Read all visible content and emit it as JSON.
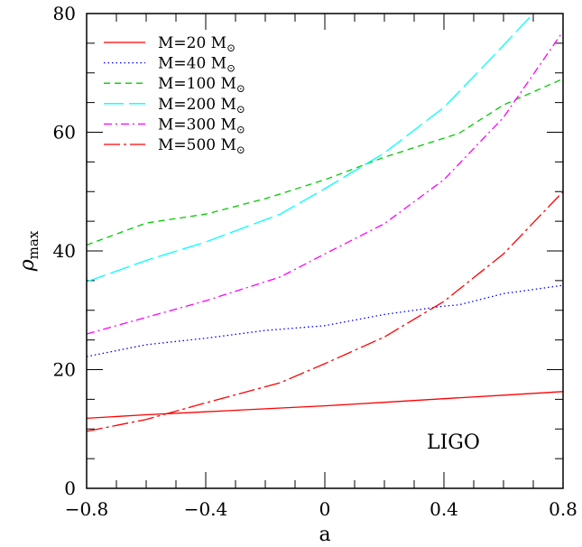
{
  "chart_data": {
    "type": "line",
    "xlabel": "a",
    "ylabel": "ρ",
    "ylabel_sub": "max",
    "xlim": [
      -0.8,
      0.8
    ],
    "ylim": [
      0,
      80
    ],
    "xticks": [
      -0.8,
      -0.4,
      0,
      0.4,
      0.8
    ],
    "xtick_labels": [
      "−0.8",
      "−0.4",
      "0",
      "0.4",
      "0.8"
    ],
    "yticks": [
      0,
      20,
      40,
      60,
      80
    ],
    "ytick_labels": [
      "0",
      "20",
      "40",
      "60",
      "80"
    ],
    "grid": false,
    "legend_position": "top-left",
    "annotation": "LIGO",
    "series": [
      {
        "name": "M=20 M⊙",
        "mass": "20",
        "color": "#ff0000",
        "dash": "",
        "x": [
          -0.8,
          -0.6,
          -0.4,
          -0.2,
          0,
          0.2,
          0.4,
          0.6,
          0.8
        ],
        "y": [
          11.8,
          12.4,
          12.9,
          13.4,
          13.9,
          14.5,
          15.1,
          15.7,
          16.3
        ]
      },
      {
        "name": "M=40 M⊙",
        "mass": "40",
        "color": "#0000ff",
        "dash": "1.5,3",
        "x": [
          -0.8,
          -0.6,
          -0.4,
          -0.2,
          0,
          0.2,
          0.4,
          0.45,
          0.6,
          0.8
        ],
        "y": [
          22.2,
          24.2,
          25.3,
          26.6,
          27.4,
          29.3,
          30.7,
          30.9,
          32.8,
          34.2
        ]
      },
      {
        "name": "M=100 M⊙",
        "mass": "100",
        "color": "#00cc00",
        "dash": "7,5",
        "x": [
          -0.8,
          -0.6,
          -0.4,
          -0.2,
          0,
          0.2,
          0.45,
          0.6,
          0.8
        ],
        "y": [
          41,
          44.7,
          46.2,
          48.8,
          52,
          55.8,
          59.8,
          64.6,
          69
        ]
      },
      {
        "name": "M=200 M⊙",
        "mass": "200",
        "color": "#00ffff",
        "dash": "22,6",
        "x": [
          -0.8,
          -0.6,
          -0.4,
          -0.15,
          0,
          0.2,
          0.4,
          0.55,
          0.7
        ],
        "y": [
          34.8,
          38.4,
          41.5,
          46.2,
          50.5,
          56.5,
          64.2,
          72,
          80
        ]
      },
      {
        "name": "M=300 M⊙",
        "mass": "300",
        "color": "#ff00ff",
        "dash": "9,4,2,4",
        "x": [
          -0.8,
          -0.6,
          -0.4,
          -0.15,
          0,
          0.2,
          0.4,
          0.6,
          0.8
        ],
        "y": [
          26,
          28.8,
          31.6,
          35.6,
          39.5,
          44.6,
          52,
          62.5,
          77
        ]
      },
      {
        "name": "M=500 M⊙",
        "mass": "500",
        "color": "#ff0000",
        "dash": "18,4,3,4",
        "x": [
          -0.8,
          -0.6,
          -0.4,
          -0.15,
          0,
          0.2,
          0.4,
          0.6,
          0.8
        ],
        "y": [
          9.6,
          11.6,
          14.4,
          17.8,
          21,
          25.5,
          31.5,
          39.5,
          50
        ]
      }
    ]
  }
}
